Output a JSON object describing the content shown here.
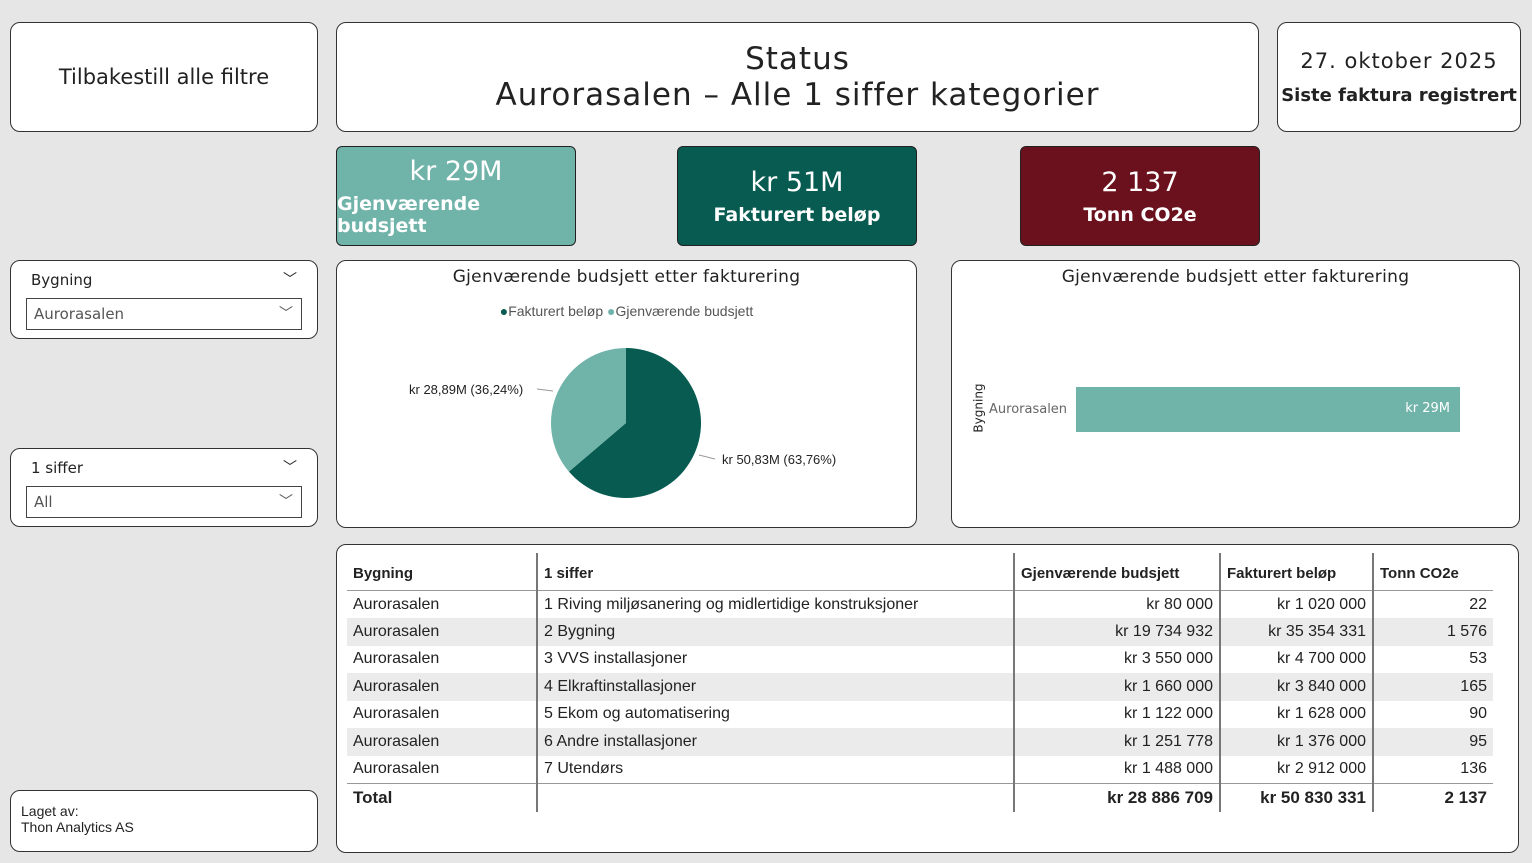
{
  "reset_button": "Tilbakestill alle filtre",
  "header": {
    "title": "Status",
    "subtitle": "Aurorasalen – Alle 1 siffer kategorier"
  },
  "date_card": {
    "date": "27. oktober 2025",
    "label": "Siste faktura registrert"
  },
  "kpis": [
    {
      "value": "kr 29M",
      "label": "Gjenværende budsjett",
      "color": "#70b3a9"
    },
    {
      "value": "kr 51M",
      "label": "Fakturert beløp",
      "color": "#075b51"
    },
    {
      "value": "2 137",
      "label": "Tonn CO2e",
      "color": "#6b111d"
    }
  ],
  "slicers": [
    {
      "title": "Bygning",
      "value": "Aurorasalen"
    },
    {
      "title": "1 siffer",
      "value": "All"
    }
  ],
  "credit": {
    "line1": "Laget av:",
    "line2": "Thon Analytics AS"
  },
  "chart_data": [
    {
      "type": "pie",
      "title": "Gjenværende budsjett etter fakturering",
      "legend": [
        "Fakturert beløp",
        "Gjenværende budsjett"
      ],
      "legend_position": "top",
      "slices": [
        {
          "name": "Fakturert beløp",
          "value": 50.83,
          "label": "kr 50,83M (63,76%)",
          "color": "#075b51"
        },
        {
          "name": "Gjenværende budsjett",
          "value": 28.89,
          "label": "kr 28,89M (36,24%)",
          "color": "#70b3a9"
        }
      ]
    },
    {
      "type": "bar",
      "orientation": "horizontal",
      "title": "Gjenværende budsjett etter fakturering",
      "ylabel": "Bygning",
      "categories": [
        "Aurorasalen"
      ],
      "values": [
        28.89
      ],
      "data_labels": [
        "kr 29M"
      ],
      "color": "#70b3a9"
    }
  ],
  "table": {
    "headers": [
      "Bygning",
      "1 siffer",
      "Gjenværende budsjett",
      "Fakturert beløp",
      "Tonn CO2e"
    ],
    "rows": [
      [
        "Aurorasalen",
        "1 Riving miljøsanering og midlertidige konstruksjoner",
        "kr 80 000",
        "kr 1 020 000",
        "22"
      ],
      [
        "Aurorasalen",
        "2 Bygning",
        "kr 19 734 932",
        "kr 35 354 331",
        "1 576"
      ],
      [
        "Aurorasalen",
        "3 VVS installasjoner",
        "kr 3 550 000",
        "kr 4 700 000",
        "53"
      ],
      [
        "Aurorasalen",
        "4 Elkraftinstallasjoner",
        "kr 1 660 000",
        "kr 3 840 000",
        "165"
      ],
      [
        "Aurorasalen",
        "5 Ekom og automatisering",
        "kr 1 122 000",
        "kr 1 628 000",
        "90"
      ],
      [
        "Aurorasalen",
        "6 Andre installasjoner",
        "kr 1 251 778",
        "kr 1 376 000",
        "95"
      ],
      [
        "Aurorasalen",
        "7 Utendørs",
        "kr 1 488 000",
        "kr 2 912 000",
        "136"
      ]
    ],
    "total": [
      "Total",
      "",
      "kr 28 886 709",
      "kr 50 830 331",
      "2 137"
    ]
  }
}
